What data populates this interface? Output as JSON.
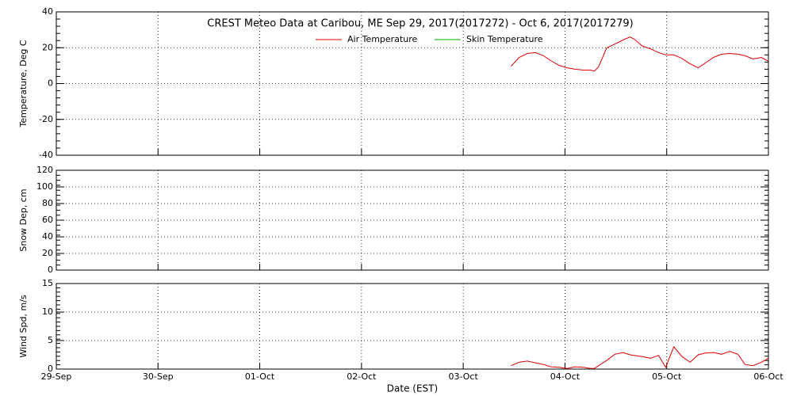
{
  "chart_data": [
    {
      "type": "line",
      "title": "CREST Meteo Data at Caribou, ME   Sep 29, 2017(2017272) - Oct  6, 2017(2017279)",
      "ylabel": "Temperature, Deg C",
      "xlim": [
        0,
        7
      ],
      "xticks": [
        0,
        1,
        2,
        3,
        4,
        5,
        6,
        7
      ],
      "ylim": [
        -40,
        40
      ],
      "yticks": [
        -40,
        -20,
        0,
        20,
        40
      ],
      "grid": true,
      "x": [
        4.47,
        4.55,
        4.63,
        4.71,
        4.79,
        4.86,
        4.94,
        5.02,
        5.1,
        5.18,
        5.25,
        5.29,
        5.33,
        5.41,
        5.49,
        5.57,
        5.64,
        5.68,
        5.76,
        5.84,
        5.92,
        5.99,
        6.07,
        6.15,
        6.23,
        6.31,
        6.38,
        6.46,
        6.54,
        6.62,
        6.7,
        6.77,
        6.85,
        6.93,
        7.0
      ],
      "series": [
        {
          "name": "Air Temperature",
          "color": "#e00000",
          "values": [
            9.7,
            14.6,
            16.8,
            17.3,
            15.5,
            12.8,
            10.2,
            8.8,
            8,
            7.5,
            7.5,
            7,
            9.3,
            19.9,
            22,
            24.3,
            26,
            24.8,
            21,
            19.4,
            17.3,
            16,
            16,
            14,
            11,
            8.8,
            11.5,
            14.6,
            16.4,
            16.8,
            16.4,
            15.5,
            13.7,
            14.6,
            12.4
          ]
        },
        {
          "name": "Skin Temperature",
          "color": "#00b000",
          "values": [
            null,
            null,
            null,
            null,
            null,
            null,
            null,
            null,
            null,
            null,
            null,
            null,
            null,
            null,
            null,
            null,
            null,
            null,
            null,
            null,
            null,
            null,
            null,
            null,
            null,
            null,
            null,
            null,
            null,
            null,
            null,
            null,
            null,
            null,
            null
          ]
        }
      ]
    },
    {
      "type": "line",
      "ylabel": "Snow Dep, cm",
      "xlim": [
        0,
        7
      ],
      "xticks": [
        0,
        1,
        2,
        3,
        4,
        5,
        6,
        7
      ],
      "ylim": [
        0,
        120
      ],
      "yticks": [
        0,
        20,
        40,
        60,
        80,
        100,
        120
      ],
      "grid": true
    },
    {
      "type": "line",
      "ylabel": "Wind Spd, m/s",
      "xlabel": "Date (EST)",
      "xlim": [
        0,
        7
      ],
      "xticks": [
        {
          "value": 0,
          "label": "29-Sep"
        },
        {
          "value": 1,
          "label": "30-Sep"
        },
        {
          "value": 2,
          "label": "01-Oct"
        },
        {
          "value": 3,
          "label": "02-Oct"
        },
        {
          "value": 4,
          "label": "03-Oct"
        },
        {
          "value": 5,
          "label": "04-Oct"
        },
        {
          "value": 6,
          "label": "05-Oct"
        },
        {
          "value": 7,
          "label": "06-Oct"
        }
      ],
      "ylim": [
        0,
        15
      ],
      "yticks": [
        0,
        5,
        10,
        15
      ],
      "grid": true,
      "x": [
        4.47,
        4.55,
        4.63,
        4.71,
        4.79,
        4.86,
        4.94,
        5.02,
        5.1,
        5.18,
        5.25,
        5.29,
        5.33,
        5.41,
        5.49,
        5.57,
        5.64,
        5.68,
        5.76,
        5.84,
        5.92,
        5.99,
        6.07,
        6.15,
        6.23,
        6.31,
        6.38,
        6.46,
        6.54,
        6.62,
        6.7,
        6.77,
        6.85,
        6.93,
        7.0
      ],
      "series": [
        {
          "color": "#e00000",
          "values": [
            0.6,
            1.2,
            1.4,
            1.1,
            0.8,
            0.4,
            0.3,
            0.1,
            0.4,
            0.3,
            0.1,
            0.1,
            0.6,
            1.5,
            2.6,
            2.9,
            2.5,
            2.4,
            2.2,
            1.9,
            2.4,
            0.3,
            3.9,
            2.2,
            1.2,
            2.5,
            2.8,
            2.9,
            2.6,
            3.1,
            2.6,
            0.8,
            0.6,
            1.2,
            1.9
          ]
        }
      ]
    }
  ]
}
